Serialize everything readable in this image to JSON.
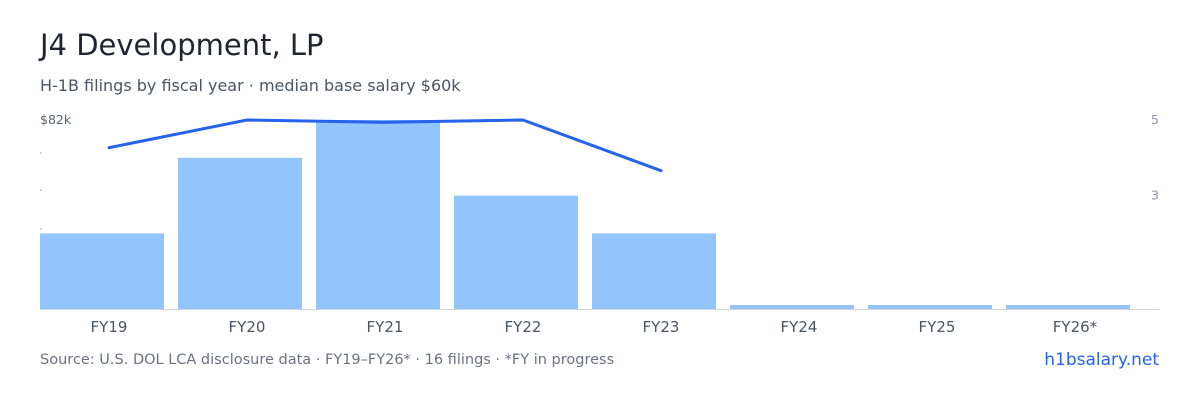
{
  "header": {
    "title": "J4 Development, LP",
    "subtitle": "H-1B filings by fiscal year · median base salary $60k"
  },
  "chart_data": {
    "type": "bar",
    "categories": [
      "FY19",
      "FY20",
      "FY21",
      "FY22",
      "FY23",
      "FY24",
      "FY25",
      "FY26*"
    ],
    "series": [
      {
        "kind": "bar",
        "axis": "right",
        "values": [
          2,
          4,
          5,
          3,
          2,
          0,
          0,
          0
        ]
      },
      {
        "kind": "line",
        "axis": "left",
        "values": [
          70,
          82,
          81,
          82,
          60,
          null,
          null,
          null
        ]
      }
    ],
    "left_axis": {
      "top_tick_label": "$82k",
      "ylim": [
        0,
        82
      ]
    },
    "right_axis": {
      "tick_labels": [
        "5",
        "3"
      ],
      "ylim": [
        0,
        5
      ]
    },
    "colors": {
      "bar": "#93c5fd",
      "line": "#2563eb",
      "baseline": "#d1d5db"
    },
    "grid": false,
    "legend": "none"
  },
  "footer": {
    "source": "Source: U.S. DOL LCA disclosure data · FY19–FY26* · 16 filings · *FY in progress",
    "brand": "h1bsalary.net"
  }
}
